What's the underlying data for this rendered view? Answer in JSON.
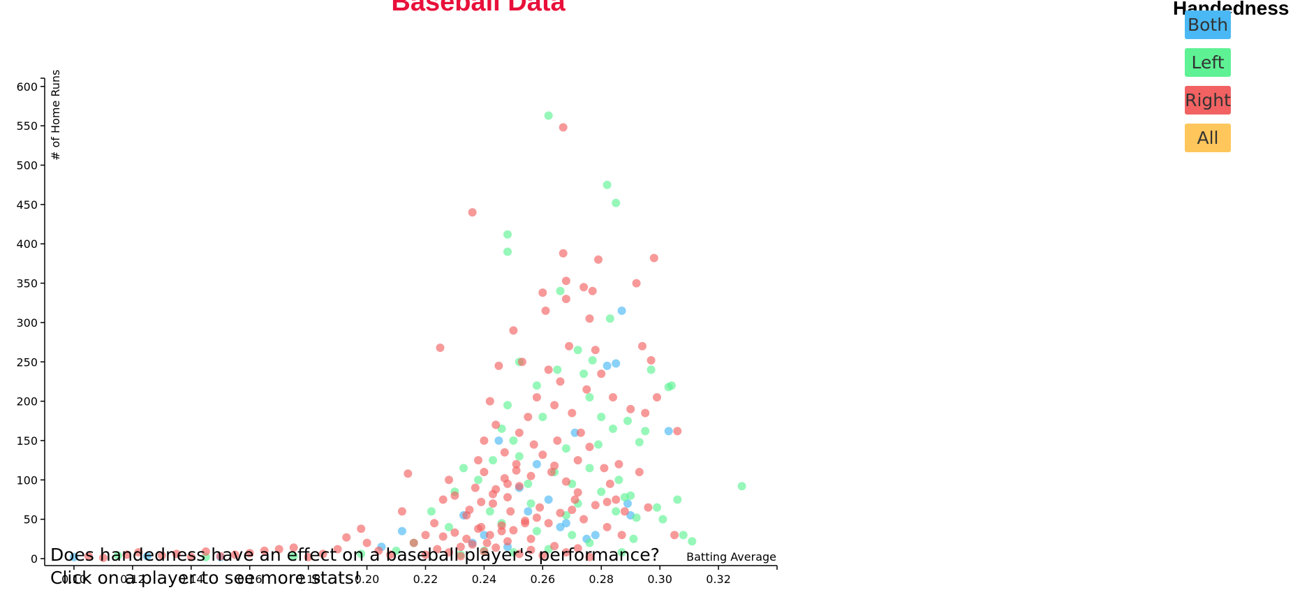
{
  "page": {
    "question": "Does handedness have an effect on a baseball player's performance?",
    "instruction": "Click on a player to see more stats!"
  },
  "legend": {
    "title": "Handedness",
    "buttons": [
      {
        "label": "Both",
        "color": "#4ab8f4"
      },
      {
        "label": "Left",
        "color": "#5ef294"
      },
      {
        "label": "Right",
        "color": "#f26262"
      },
      {
        "label": "All",
        "color": "#ffc65c"
      }
    ]
  },
  "chart_data": {
    "type": "scatter",
    "title": "Baseball Data",
    "xlabel": "Batting Average",
    "ylabel": "# of Home Runs",
    "xlim": [
      0.09,
      0.34
    ],
    "ylim": [
      0,
      610
    ],
    "x_ticks": [
      "0.10",
      "0.12",
      "0.14",
      "0.16",
      "0.18",
      "0.20",
      "0.22",
      "0.24",
      "0.26",
      "0.28",
      "0.30",
      "0.32"
    ],
    "y_ticks": [
      "0",
      "50",
      "100",
      "150",
      "200",
      "250",
      "300",
      "350",
      "400",
      "450",
      "500",
      "550",
      "600"
    ],
    "grid": false,
    "legend_position": "top-right",
    "series": [
      {
        "name": "Both",
        "color": "#4ab8f4",
        "points": [
          [
            0.1,
            2
          ],
          [
            0.125,
            3
          ],
          [
            0.15,
            2
          ],
          [
            0.205,
            15
          ],
          [
            0.212,
            35
          ],
          [
            0.233,
            55
          ],
          [
            0.245,
            150
          ],
          [
            0.252,
            90
          ],
          [
            0.258,
            120
          ],
          [
            0.262,
            75
          ],
          [
            0.268,
            45
          ],
          [
            0.271,
            160
          ],
          [
            0.275,
            25
          ],
          [
            0.282,
            245
          ],
          [
            0.285,
            248
          ],
          [
            0.287,
            315
          ],
          [
            0.289,
            70
          ],
          [
            0.29,
            55
          ],
          [
            0.303,
            162
          ],
          [
            0.248,
            15
          ],
          [
            0.24,
            30
          ],
          [
            0.255,
            60
          ],
          [
            0.266,
            40
          ],
          [
            0.278,
            30
          ],
          [
            0.236,
            20
          ]
        ]
      },
      {
        "name": "Left",
        "color": "#5ef294",
        "points": [
          [
            0.115,
            4
          ],
          [
            0.145,
            2
          ],
          [
            0.175,
            3
          ],
          [
            0.198,
            6
          ],
          [
            0.21,
            10
          ],
          [
            0.216,
            20
          ],
          [
            0.222,
            60
          ],
          [
            0.228,
            40
          ],
          [
            0.233,
            115
          ],
          [
            0.238,
            100
          ],
          [
            0.243,
            125
          ],
          [
            0.246,
            165
          ],
          [
            0.248,
            195
          ],
          [
            0.25,
            150
          ],
          [
            0.248,
            412
          ],
          [
            0.248,
            390
          ],
          [
            0.252,
            250
          ],
          [
            0.255,
            95
          ],
          [
            0.258,
            220
          ],
          [
            0.26,
            180
          ],
          [
            0.262,
            563
          ],
          [
            0.265,
            240
          ],
          [
            0.266,
            340
          ],
          [
            0.268,
            140
          ],
          [
            0.27,
            95
          ],
          [
            0.272,
            265
          ],
          [
            0.274,
            235
          ],
          [
            0.276,
            205
          ],
          [
            0.277,
            252
          ],
          [
            0.279,
            145
          ],
          [
            0.28,
            180
          ],
          [
            0.282,
            475
          ],
          [
            0.283,
            305
          ],
          [
            0.284,
            165
          ],
          [
            0.285,
            452
          ],
          [
            0.286,
            100
          ],
          [
            0.287,
            8
          ],
          [
            0.288,
            78
          ],
          [
            0.289,
            175
          ],
          [
            0.291,
            25
          ],
          [
            0.292,
            52
          ],
          [
            0.293,
            148
          ],
          [
            0.295,
            162
          ],
          [
            0.297,
            240
          ],
          [
            0.299,
            65
          ],
          [
            0.301,
            50
          ],
          [
            0.303,
            218
          ],
          [
            0.304,
            220
          ],
          [
            0.306,
            75
          ],
          [
            0.308,
            30
          ],
          [
            0.311,
            22
          ],
          [
            0.328,
            92
          ],
          [
            0.276,
            20
          ],
          [
            0.262,
            12
          ],
          [
            0.25,
            8
          ],
          [
            0.24,
            10
          ],
          [
            0.232,
            5
          ],
          [
            0.268,
            55
          ],
          [
            0.258,
            35
          ],
          [
            0.246,
            45
          ],
          [
            0.272,
            70
          ],
          [
            0.28,
            85
          ],
          [
            0.285,
            60
          ],
          [
            0.29,
            80
          ],
          [
            0.264,
            110
          ],
          [
            0.252,
            130
          ],
          [
            0.256,
            70
          ],
          [
            0.27,
            30
          ],
          [
            0.242,
            60
          ],
          [
            0.23,
            85
          ],
          [
            0.276,
            115
          ]
        ]
      },
      {
        "name": "Right",
        "color": "#f26262",
        "points": [
          [
            0.105,
            3
          ],
          [
            0.11,
            1
          ],
          [
            0.118,
            5
          ],
          [
            0.122,
            8
          ],
          [
            0.13,
            4
          ],
          [
            0.135,
            6
          ],
          [
            0.14,
            2
          ],
          [
            0.145,
            9
          ],
          [
            0.15,
            3
          ],
          [
            0.155,
            5
          ],
          [
            0.16,
            7
          ],
          [
            0.165,
            10
          ],
          [
            0.17,
            12
          ],
          [
            0.175,
            14
          ],
          [
            0.18,
            2
          ],
          [
            0.185,
            6
          ],
          [
            0.19,
            12
          ],
          [
            0.193,
            27
          ],
          [
            0.198,
            38
          ],
          [
            0.2,
            20
          ],
          [
            0.204,
            10
          ],
          [
            0.208,
            5
          ],
          [
            0.212,
            60
          ],
          [
            0.214,
            108
          ],
          [
            0.216,
            20
          ],
          [
            0.22,
            30
          ],
          [
            0.223,
            45
          ],
          [
            0.225,
            268
          ],
          [
            0.226,
            75
          ],
          [
            0.228,
            100
          ],
          [
            0.23,
            80
          ],
          [
            0.232,
            15
          ],
          [
            0.234,
            55
          ],
          [
            0.236,
            440
          ],
          [
            0.237,
            90
          ],
          [
            0.238,
            125
          ],
          [
            0.239,
            40
          ],
          [
            0.24,
            110
          ],
          [
            0.241,
            20
          ],
          [
            0.242,
            200
          ],
          [
            0.243,
            70
          ],
          [
            0.244,
            170
          ],
          [
            0.245,
            245
          ],
          [
            0.246,
            35
          ],
          [
            0.247,
            135
          ],
          [
            0.248,
            95
          ],
          [
            0.249,
            60
          ],
          [
            0.25,
            290
          ],
          [
            0.251,
            120
          ],
          [
            0.252,
            160
          ],
          [
            0.253,
            250
          ],
          [
            0.254,
            45
          ],
          [
            0.255,
            180
          ],
          [
            0.256,
            25
          ],
          [
            0.257,
            145
          ],
          [
            0.258,
            205
          ],
          [
            0.259,
            65
          ],
          [
            0.26,
            338
          ],
          [
            0.261,
            315
          ],
          [
            0.262,
            240
          ],
          [
            0.263,
            110
          ],
          [
            0.264,
            195
          ],
          [
            0.265,
            150
          ],
          [
            0.266,
            225
          ],
          [
            0.267,
            548
          ],
          [
            0.267,
            388
          ],
          [
            0.268,
            353
          ],
          [
            0.268,
            330
          ],
          [
            0.269,
            270
          ],
          [
            0.27,
            185
          ],
          [
            0.271,
            75
          ],
          [
            0.272,
            125
          ],
          [
            0.273,
            160
          ],
          [
            0.274,
            345
          ],
          [
            0.275,
            215
          ],
          [
            0.276,
            305
          ],
          [
            0.277,
            340
          ],
          [
            0.278,
            265
          ],
          [
            0.279,
            380
          ],
          [
            0.28,
            235
          ],
          [
            0.281,
            115
          ],
          [
            0.282,
            40
          ],
          [
            0.283,
            95
          ],
          [
            0.284,
            205
          ],
          [
            0.285,
            75
          ],
          [
            0.286,
            120
          ],
          [
            0.287,
            30
          ],
          [
            0.288,
            60
          ],
          [
            0.29,
            190
          ],
          [
            0.292,
            350
          ],
          [
            0.293,
            110
          ],
          [
            0.294,
            270
          ],
          [
            0.295,
            185
          ],
          [
            0.296,
            65
          ],
          [
            0.297,
            252
          ],
          [
            0.298,
            382
          ],
          [
            0.299,
            205
          ],
          [
            0.305,
            30
          ],
          [
            0.306,
            162
          ],
          [
            0.22,
            5
          ],
          [
            0.224,
            12
          ],
          [
            0.228,
            8
          ],
          [
            0.232,
            3
          ],
          [
            0.236,
            18
          ],
          [
            0.24,
            9
          ],
          [
            0.244,
            14
          ],
          [
            0.248,
            22
          ],
          [
            0.252,
            6
          ],
          [
            0.256,
            11
          ],
          [
            0.26,
            4
          ],
          [
            0.264,
            16
          ],
          [
            0.268,
            8
          ],
          [
            0.272,
            13
          ],
          [
            0.276,
            2
          ],
          [
            0.226,
            28
          ],
          [
            0.23,
            33
          ],
          [
            0.234,
            25
          ],
          [
            0.238,
            38
          ],
          [
            0.242,
            30
          ],
          [
            0.246,
            42
          ],
          [
            0.25,
            36
          ],
          [
            0.254,
            48
          ],
          [
            0.258,
            52
          ],
          [
            0.262,
            45
          ],
          [
            0.266,
            58
          ],
          [
            0.27,
            62
          ],
          [
            0.274,
            50
          ],
          [
            0.278,
            68
          ],
          [
            0.282,
            72
          ],
          [
            0.24,
            150
          ],
          [
            0.244,
            88
          ],
          [
            0.248,
            78
          ],
          [
            0.252,
            92
          ],
          [
            0.256,
            105
          ],
          [
            0.26,
            132
          ],
          [
            0.264,
            118
          ],
          [
            0.268,
            98
          ],
          [
            0.272,
            84
          ],
          [
            0.276,
            142
          ],
          [
            0.235,
            62
          ],
          [
            0.239,
            72
          ],
          [
            0.243,
            82
          ],
          [
            0.247,
            102
          ],
          [
            0.251,
            112
          ]
        ]
      }
    ]
  }
}
